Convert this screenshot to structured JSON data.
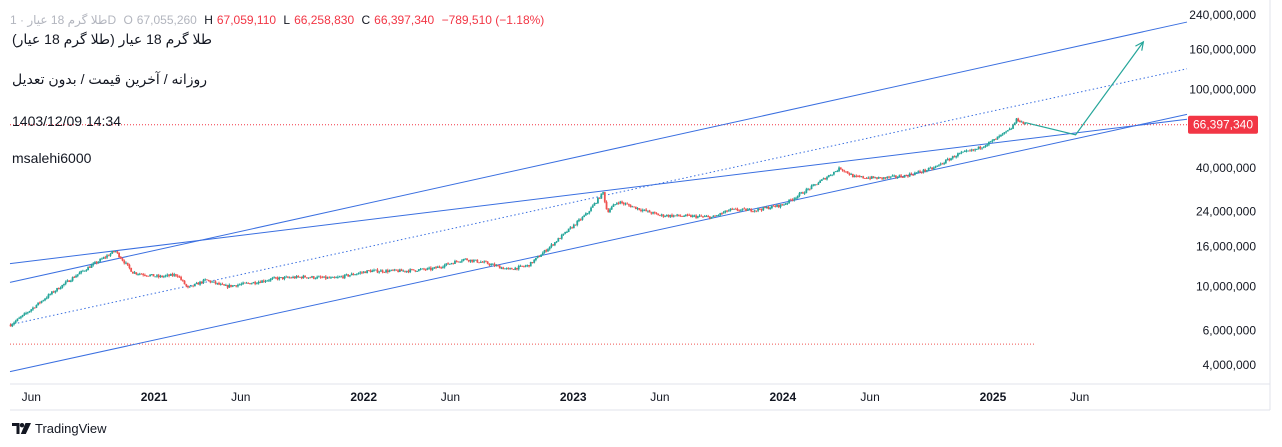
{
  "header": {
    "symbol_faded": "طلا گرم 18 عیار · 1D",
    "open_label": "O",
    "open_value": "67,055,260",
    "high_label": "H",
    "high_value": "67,059,110",
    "low_label": "L",
    "low_value": "66,258,830",
    "close_label": "C",
    "close_value": "66,397,340",
    "change": "−789,510 (−1.18%)",
    "title": "طلا گرم 18 عیار (طلا گرم 18 عیار)",
    "subtitle": "روزانه / آخرین قیمت / بدون تعدیل",
    "datetime": "1403/12/09 14:34",
    "author": "msalehi6000"
  },
  "brand": {
    "name": "TradingView",
    "icon": "tradingview-logo-icon"
  },
  "colors": {
    "up": "#26a69a",
    "down": "#ef5350",
    "trendline": "#3a6fe0",
    "projection": "#26a69a",
    "price_tag": "#f23645",
    "axis_text": "#131722",
    "grid": "#f0f3fa"
  },
  "chart_data": {
    "type": "candlestick",
    "y_scale": "log",
    "ylim": [
      3200000,
      260000000
    ],
    "x_range": [
      "2020-04-25",
      "2025-12-05"
    ],
    "y_tick_labels": [
      {
        "value": 4000000,
        "label": "4,000,000"
      },
      {
        "value": 6000000,
        "label": "6,000,000"
      },
      {
        "value": 10000000,
        "label": "10,000,000"
      },
      {
        "value": 16000000,
        "label": "16,000,000"
      },
      {
        "value": 24000000,
        "label": "24,000,000"
      },
      {
        "value": 40000000,
        "label": "40,000,000"
      },
      {
        "value": 100000000,
        "label": "100,000,000"
      },
      {
        "value": 160000000,
        "label": "160,000,000"
      },
      {
        "value": 240000000,
        "label": "240,000,000"
      }
    ],
    "x_tick_labels": [
      {
        "date": "2020-06-01",
        "label": "Jun"
      },
      {
        "date": "2021-01-01",
        "label": "2021"
      },
      {
        "date": "2021-06-01",
        "label": "Jun"
      },
      {
        "date": "2022-01-01",
        "label": "2022"
      },
      {
        "date": "2022-06-01",
        "label": "Jun"
      },
      {
        "date": "2023-01-01",
        "label": "2023"
      },
      {
        "date": "2023-06-01",
        "label": "Jun"
      },
      {
        "date": "2024-01-01",
        "label": "2024"
      },
      {
        "date": "2024-06-01",
        "label": "Jun"
      },
      {
        "date": "2025-01-01",
        "label": "2025"
      },
      {
        "date": "2025-06-01",
        "label": "Jun"
      }
    ],
    "price_anchors": [
      [
        "2020-04-26",
        6400000
      ],
      [
        "2020-05-20",
        7200000
      ],
      [
        "2020-07-05",
        9200000
      ],
      [
        "2020-08-20",
        11500000
      ],
      [
        "2020-10-25",
        15200000
      ],
      [
        "2020-11-25",
        11800000
      ],
      [
        "2021-01-10",
        11200000
      ],
      [
        "2021-02-10",
        11500000
      ],
      [
        "2021-03-01",
        9800000
      ],
      [
        "2021-04-01",
        10800000
      ],
      [
        "2021-05-05",
        10000000
      ],
      [
        "2021-06-25",
        10500000
      ],
      [
        "2021-08-01",
        11000000
      ],
      [
        "2021-09-20",
        11200000
      ],
      [
        "2021-11-10",
        11000000
      ],
      [
        "2022-01-10",
        12000000
      ],
      [
        "2022-03-10",
        12000000
      ],
      [
        "2022-05-01",
        12300000
      ],
      [
        "2022-06-25",
        13800000
      ],
      [
        "2022-08-01",
        13200000
      ],
      [
        "2022-09-10",
        12200000
      ],
      [
        "2022-10-15",
        12800000
      ],
      [
        "2022-11-20",
        15800000
      ],
      [
        "2022-12-25",
        19500000
      ],
      [
        "2023-01-25",
        23500000
      ],
      [
        "2023-02-22",
        30000000
      ],
      [
        "2023-03-01",
        24000000
      ],
      [
        "2023-03-20",
        27000000
      ],
      [
        "2023-05-01",
        24500000
      ],
      [
        "2023-06-01",
        23000000
      ],
      [
        "2023-07-20",
        22800000
      ],
      [
        "2023-09-01",
        22500000
      ],
      [
        "2023-10-01",
        24500000
      ],
      [
        "2023-11-15",
        24500000
      ],
      [
        "2024-01-01",
        26000000
      ],
      [
        "2024-02-20",
        32000000
      ],
      [
        "2024-04-10",
        40000000
      ],
      [
        "2024-05-05",
        36000000
      ],
      [
        "2024-06-20",
        35500000
      ],
      [
        "2024-08-01",
        36500000
      ],
      [
        "2024-09-20",
        40000000
      ],
      [
        "2024-11-01",
        47000000
      ],
      [
        "2024-12-01",
        49500000
      ],
      [
        "2025-01-01",
        55000000
      ],
      [
        "2025-02-01",
        63000000
      ],
      [
        "2025-02-12",
        71000000
      ],
      [
        "2025-02-27",
        66397340
      ]
    ],
    "trendlines": [
      {
        "name": "upper-channel-line",
        "p1": [
          "2020-04-25",
          10500000
        ],
        "p2": [
          "2025-09-30",
          200000000
        ],
        "style": "solid"
      },
      {
        "name": "lower-channel-line",
        "p1": [
          "2020-04-25",
          3700000
        ],
        "p2": [
          "2025-09-30",
          68000000
        ],
        "style": "solid"
      },
      {
        "name": "resistance-line",
        "p1": [
          "2020-10-25",
          15200000
        ],
        "p2": [
          "2025-09-30",
          67000000
        ],
        "style": "solid"
      },
      {
        "name": "middle-dotted-line",
        "p1": [
          "2020-04-25",
          6400000
        ],
        "p2": [
          "2025-09-30",
          116000000
        ],
        "style": "dotted"
      }
    ],
    "projection_path": [
      [
        "2025-02-27",
        68000000
      ],
      [
        "2025-05-25",
        59000000
      ],
      [
        "2025-09-20",
        175000000
      ]
    ],
    "last_price": {
      "value": 66397340,
      "label": "66,397,340"
    },
    "horizontal_line": {
      "value": 5100000,
      "from": "2020-04-25",
      "to": "2025-03-15"
    }
  }
}
